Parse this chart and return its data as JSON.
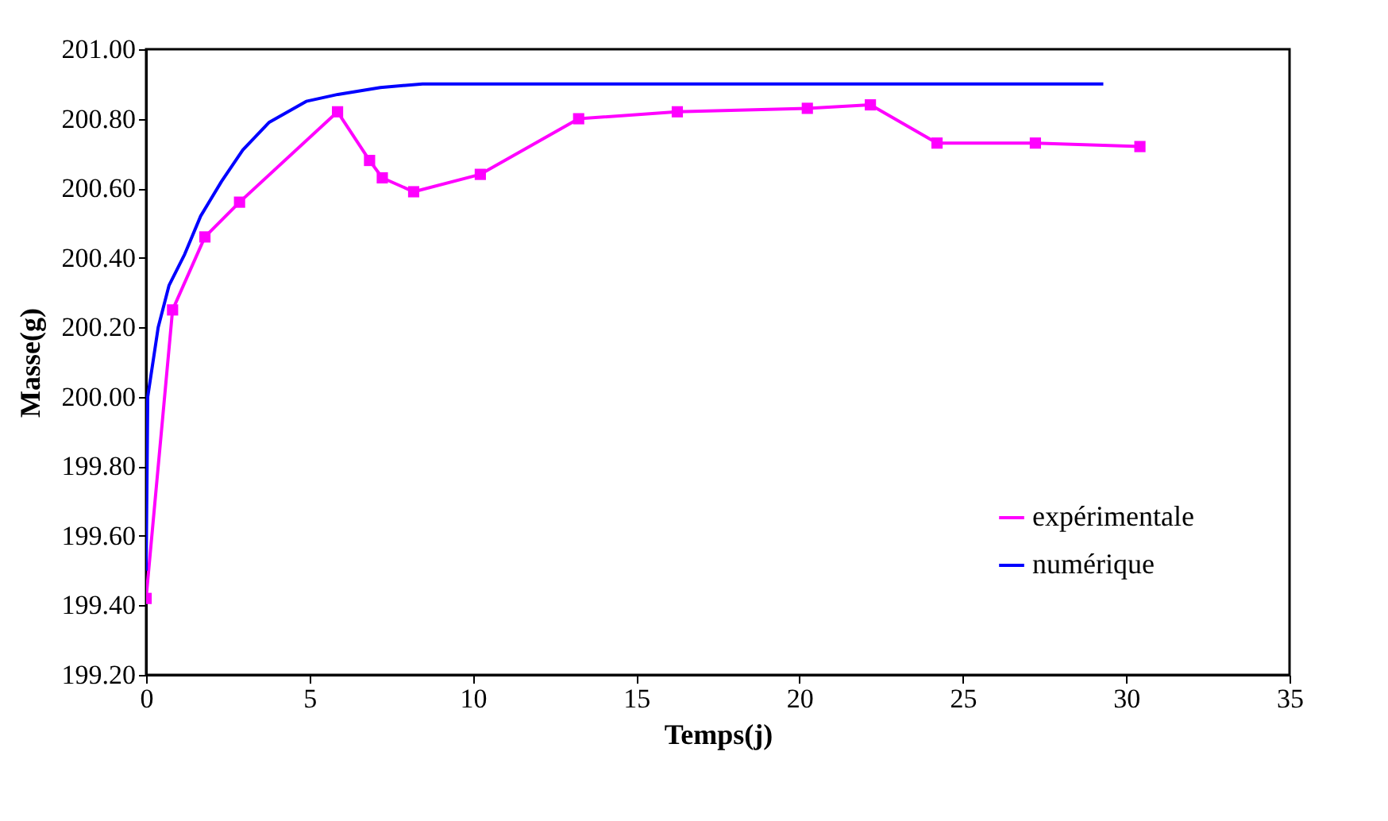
{
  "chart_data": {
    "type": "line",
    "xlabel": "Temps(j)",
    "ylabel": "Masse(g)",
    "x": [
      0,
      0.81,
      1.8,
      2.86,
      5.86,
      6.84,
      7.23,
      8.19,
      10.23,
      13.24,
      16.26,
      20.24,
      22.17,
      24.21,
      27.22,
      30.42
    ],
    "series": [
      {
        "name": "expérimentale",
        "color": "#ff00ff",
        "marker": "square",
        "values": [
          199.42,
          200.25,
          200.46,
          200.56,
          200.82,
          200.68,
          200.63,
          200.59,
          200.64,
          200.8,
          200.82,
          200.83,
          200.84,
          200.73,
          200.73,
          200.72
        ]
      },
      {
        "name": "numérique",
        "color": "#0000ff",
        "marker": "none",
        "x": [
          0,
          0.05,
          0.37,
          0.7,
          1.18,
          1.67,
          2.31,
          2.96,
          3.77,
          4.9,
          5.87,
          7.17,
          8.46,
          29.3
        ],
        "values": [
          199.5,
          200.0,
          200.2,
          200.32,
          200.41,
          200.52,
          200.62,
          200.71,
          200.79,
          200.85,
          200.87,
          200.89,
          200.9,
          200.9
        ]
      }
    ],
    "xlim": [
      0,
      35
    ],
    "xticks": [
      0,
      5,
      10,
      15,
      20,
      25,
      30,
      35
    ],
    "ylim": [
      199.2,
      201
    ],
    "yticks": [
      {
        "value": 199.2,
        "label": "199.20"
      },
      {
        "value": 199.4,
        "label": "199.40"
      },
      {
        "value": 199.6,
        "label": "199.60"
      },
      {
        "value": 199.8,
        "label": "199.80"
      },
      {
        "value": 200,
        "label": "200.00"
      },
      {
        "value": 200.2,
        "label": "200.20"
      },
      {
        "value": 200.4,
        "label": "200.40"
      },
      {
        "value": 200.6,
        "label": "200.60"
      },
      {
        "value": 200.8,
        "label": "200.80"
      },
      {
        "value": 201,
        "label": "201.00"
      }
    ],
    "grid": false,
    "legend": "bottom right",
    "line_style": "solid"
  }
}
